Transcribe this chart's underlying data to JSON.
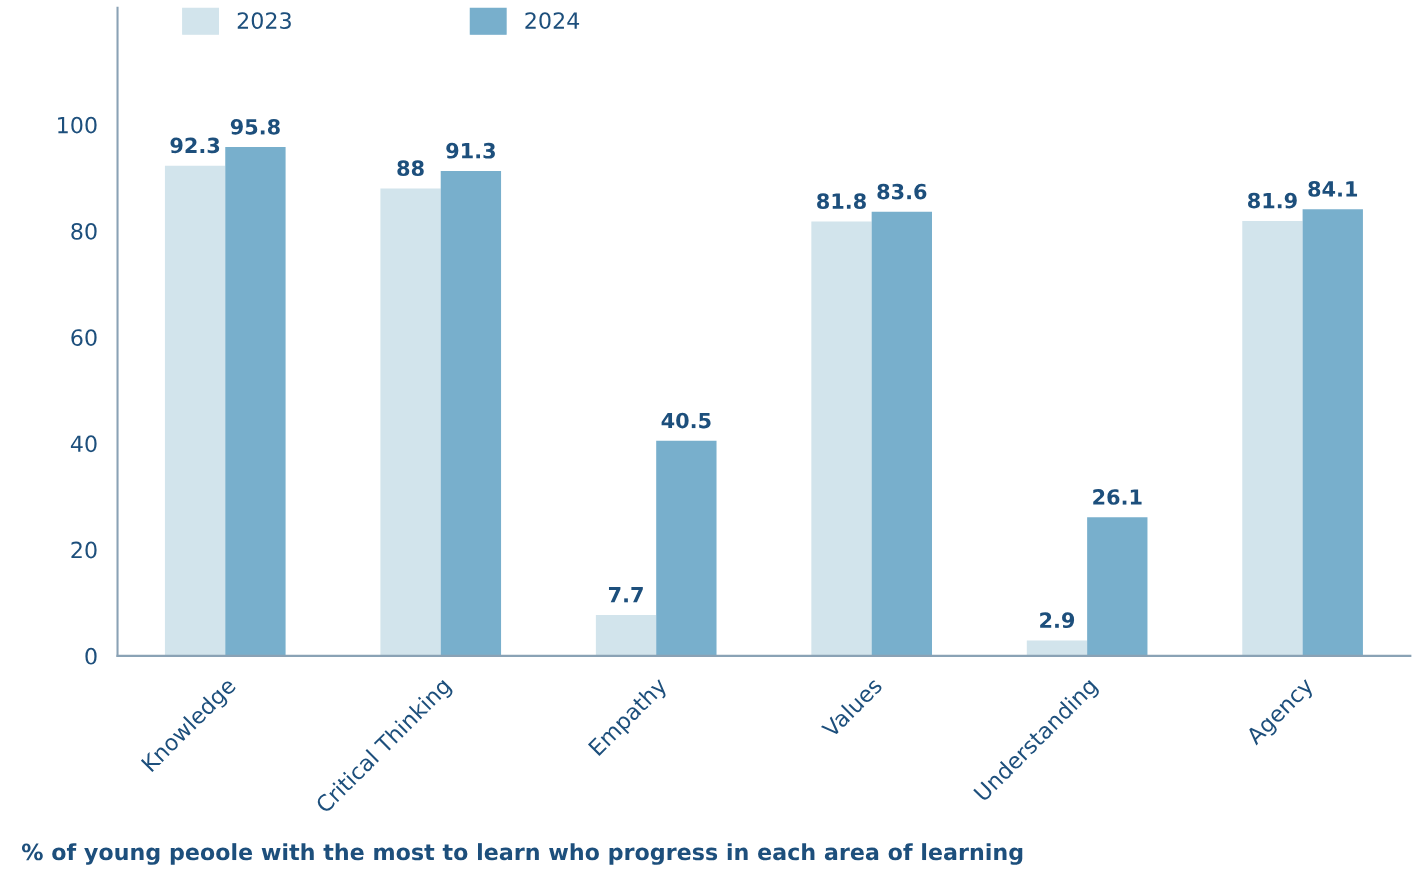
{
  "chart_data": {
    "type": "bar",
    "categories": [
      "Knowledge",
      "Critical Thinking",
      "Empathy",
      "Values",
      "Understanding",
      "Agency"
    ],
    "series": [
      {
        "name": "2023",
        "color": "#d2e4ec",
        "values": [
          92.3,
          88,
          7.7,
          81.8,
          2.9,
          81.9
        ]
      },
      {
        "name": "2024",
        "color": "#78afcc",
        "values": [
          95.8,
          91.3,
          40.5,
          83.6,
          26.1,
          84.1
        ]
      }
    ],
    "ylim": [
      0,
      122
    ],
    "yticks": [
      0,
      20,
      40,
      60,
      80,
      100
    ],
    "grid": false,
    "legend": "top left",
    "data_labels": true,
    "annotations": [
      "% of young peoole with the most to learn who progress in each area of learning"
    ]
  }
}
